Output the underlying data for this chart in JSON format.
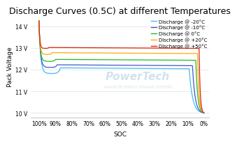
{
  "title": "Discharge Curves (0.5C) at different Temperatures",
  "xlabel": "SOC",
  "ylabel": "Pack Voltage",
  "ylim": [
    9.8,
    14.5
  ],
  "yticks": [
    10,
    11,
    12,
    13,
    14
  ],
  "ytick_labels": [
    "10 V",
    "11 V",
    "12 V",
    "13 V",
    "14 V"
  ],
  "xlim_left": 105,
  "xlim_right": -3,
  "xticks": [
    100,
    90,
    80,
    70,
    60,
    50,
    40,
    30,
    20,
    10,
    0
  ],
  "xtick_labels": [
    "100%",
    "90%",
    "80%",
    "70%",
    "60%",
    "50%",
    "40%",
    "30%",
    "20%",
    "10%",
    "0%"
  ],
  "background_color": "#ffffff",
  "grid_color": "#e0e0e0",
  "curves": [
    {
      "label": "Discharge @ -20°C",
      "color": "#44bbee",
      "peak_v": 14.25,
      "flat_v": 12.08,
      "dip_v": 11.82,
      "dip_soc": 92,
      "flat_start_soc": 87,
      "drop_soc": 9,
      "min_v": 10.0
    },
    {
      "label": "Discharge @ -10°C",
      "color": "#4455cc",
      "peak_v": 14.25,
      "flat_v": 12.22,
      "dip_v": 12.1,
      "dip_soc": 93,
      "flat_start_soc": 89,
      "drop_soc": 7,
      "min_v": 10.0
    },
    {
      "label": "Discharge @ 0°C",
      "color": "#22bb22",
      "peak_v": 14.25,
      "flat_v": 12.47,
      "dip_v": 12.38,
      "dip_soc": 94,
      "flat_start_soc": 90,
      "drop_soc": 5,
      "min_v": 10.0
    },
    {
      "label": "Discharge @ +20°C",
      "color": "#ffaa00",
      "peak_v": 14.25,
      "flat_v": 12.78,
      "dip_v": 12.7,
      "dip_soc": 95,
      "flat_start_soc": 92,
      "drop_soc": 4,
      "min_v": 10.0
    },
    {
      "label": "Discharge @ +50°C",
      "color": "#dd2211",
      "peak_v": 14.25,
      "flat_v": 13.02,
      "dip_v": 12.98,
      "dip_soc": 96,
      "flat_start_soc": 94,
      "drop_soc": 3,
      "min_v": 10.0
    }
  ],
  "watermark_text": "PowerTech",
  "watermark_sub": "ADVANCED ENERGY STORAGE SYSTEMS",
  "title_fontsize": 9,
  "axis_fontsize": 6.5,
  "tick_fontsize": 5.5,
  "legend_fontsize": 5.0
}
